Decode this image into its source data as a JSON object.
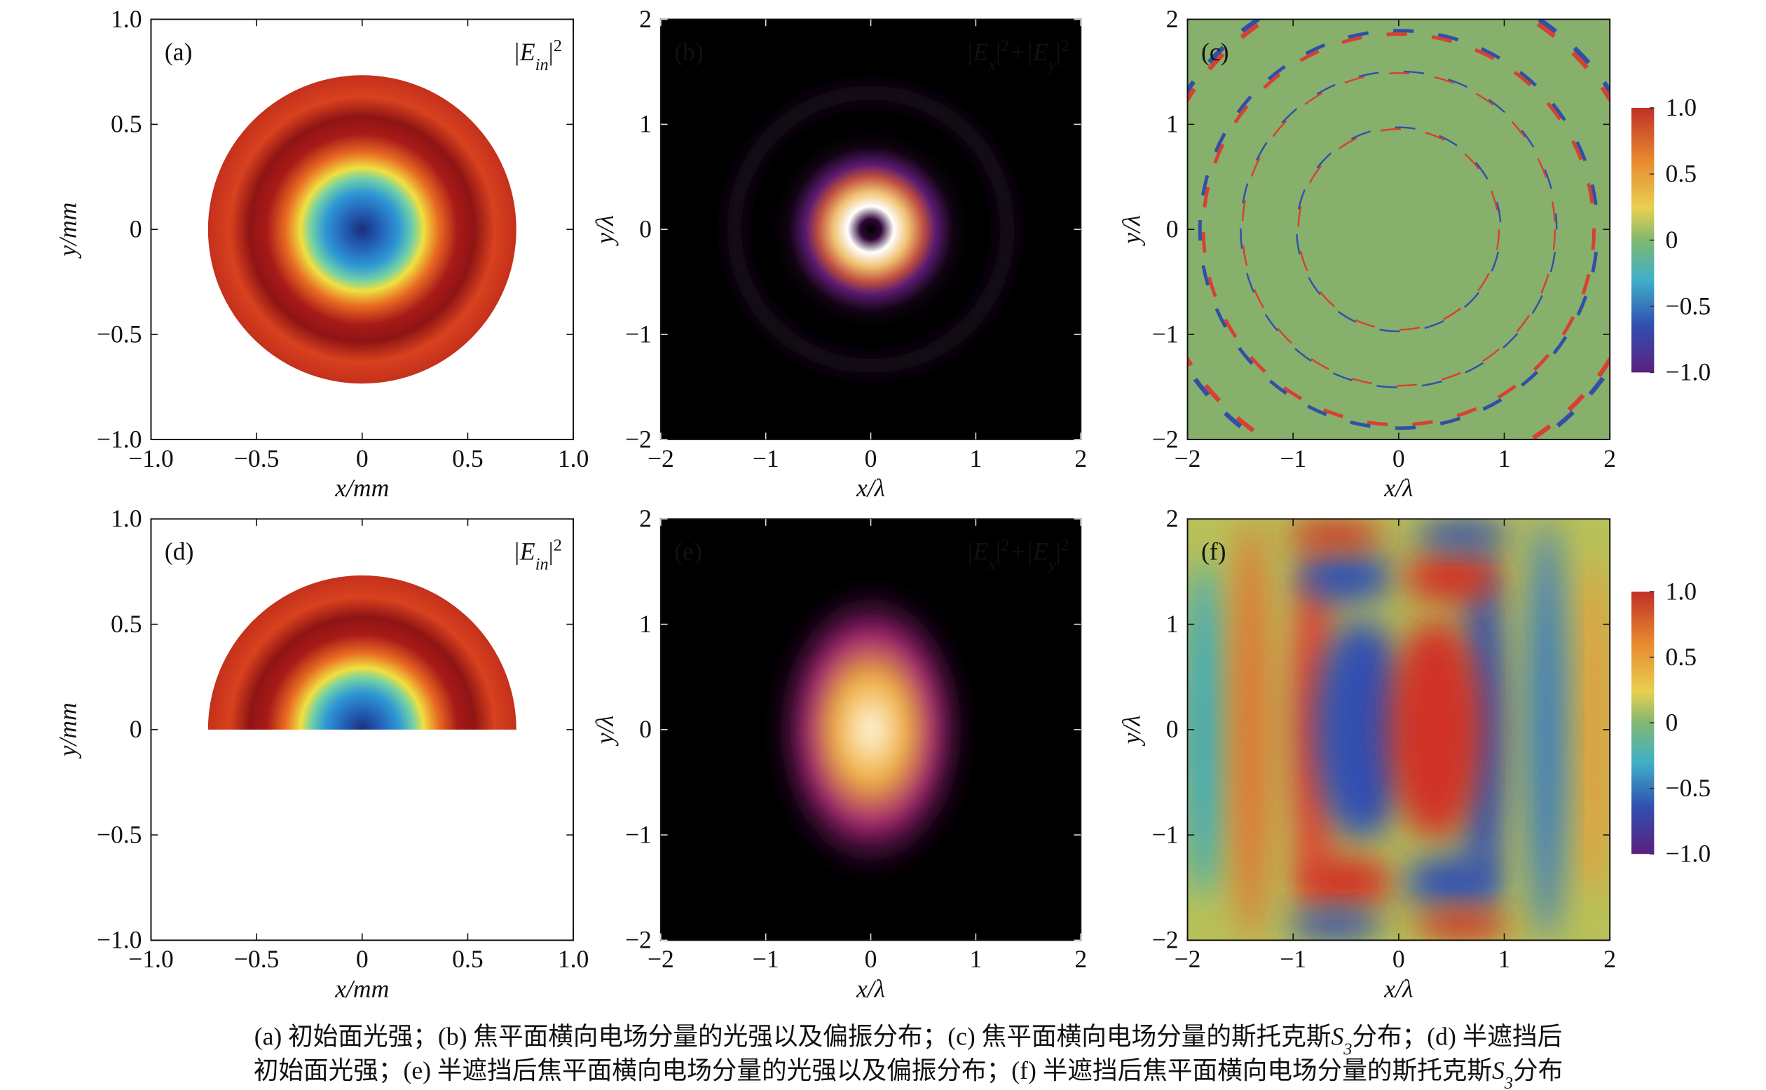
{
  "chart_data": [
    {
      "type": "heatmap",
      "label": "(a)",
      "annotation": [
        {
          "text": "|E"
        },
        {
          "text": "in",
          "style": "sub"
        },
        {
          "text": "|"
        },
        {
          "text": "2",
          "style": "sup"
        }
      ],
      "xlabel": "x/mm",
      "ylabel": "y/mm",
      "xlim": [
        -1,
        1
      ],
      "ylim": [
        -1,
        1
      ],
      "xticks": [
        {
          "value": -1,
          "label": "−1.0"
        },
        {
          "value": -0.5,
          "label": "−0.5"
        },
        0,
        0.5,
        {
          "value": 1,
          "label": "1.0"
        }
      ],
      "yticks": [
        {
          "value": -1,
          "label": "−1.0"
        },
        {
          "value": -0.5,
          "label": "−0.5"
        },
        0,
        0.5,
        {
          "value": 1,
          "label": "1.0"
        }
      ]
    },
    {
      "type": "heatmap",
      "label": "(b)",
      "annotation": [
        {
          "text": "|E"
        },
        {
          "text": "x",
          "style": "sub"
        },
        {
          "text": "|"
        },
        {
          "text": "2",
          "style": "sup"
        },
        {
          "text": "+|E"
        },
        {
          "text": "y",
          "style": "sub"
        },
        {
          "text": "|"
        },
        {
          "text": "2",
          "style": "sup"
        }
      ],
      "xlabel": "x/λ",
      "ylabel": "y/λ",
      "xlim": [
        -2,
        2
      ],
      "ylim": [
        -2,
        2
      ],
      "xticks": [
        {
          "value": -2,
          "label": "−2"
        },
        {
          "value": -1,
          "label": "−1"
        },
        0,
        1,
        2
      ],
      "yticks": [
        {
          "value": -2,
          "label": "−2"
        },
        {
          "value": -1,
          "label": "−1"
        },
        0,
        1,
        2
      ]
    },
    {
      "type": "heatmap",
      "label": "(c)",
      "xlabel": "x/λ",
      "ylabel": "y/λ",
      "xlim": [
        -2,
        2
      ],
      "ylim": [
        -2,
        2
      ],
      "xticks": [
        {
          "value": -2,
          "label": "−2"
        },
        {
          "value": -1,
          "label": "−1"
        },
        0,
        1,
        2
      ],
      "yticks": [
        {
          "value": -2,
          "label": "−2"
        },
        {
          "value": -1,
          "label": "−1"
        },
        0,
        1,
        2
      ],
      "colorbar": {
        "lim": [
          -1,
          1
        ],
        "ticks": [
          {
            "value": 1,
            "label": "1.0"
          },
          0.5,
          0,
          {
            "value": -0.5,
            "label": "−0.5"
          },
          {
            "value": -1,
            "label": "−1.0"
          }
        ]
      }
    },
    {
      "type": "heatmap",
      "label": "(d)",
      "annotation": [
        {
          "text": "|E"
        },
        {
          "text": "in",
          "style": "sub"
        },
        {
          "text": "|"
        },
        {
          "text": "2",
          "style": "sup"
        }
      ],
      "xlabel": "x/mm",
      "ylabel": "y/mm",
      "xlim": [
        -1,
        1
      ],
      "ylim": [
        -1,
        1
      ],
      "xticks": [
        {
          "value": -1,
          "label": "−1.0"
        },
        {
          "value": -0.5,
          "label": "−0.5"
        },
        0,
        0.5,
        {
          "value": 1,
          "label": "1.0"
        }
      ],
      "yticks": [
        {
          "value": -1,
          "label": "−1.0"
        },
        {
          "value": -0.5,
          "label": "−0.5"
        },
        0,
        0.5,
        {
          "value": 1,
          "label": "1.0"
        }
      ]
    },
    {
      "type": "heatmap",
      "label": "(e)",
      "annotation": [
        {
          "text": "|E"
        },
        {
          "text": "x",
          "style": "sub"
        },
        {
          "text": "|"
        },
        {
          "text": "2",
          "style": "sup"
        },
        {
          "text": "+|E"
        },
        {
          "text": "y",
          "style": "sub"
        },
        {
          "text": "|"
        },
        {
          "text": "2",
          "style": "sup"
        }
      ],
      "xlabel": "x/λ",
      "ylabel": "y/λ",
      "xlim": [
        -2,
        2
      ],
      "ylim": [
        -2,
        2
      ],
      "xticks": [
        {
          "value": -2,
          "label": "−2"
        },
        {
          "value": -1,
          "label": "−1"
        },
        0,
        1,
        2
      ],
      "yticks": [
        {
          "value": -2,
          "label": "−2"
        },
        {
          "value": -1,
          "label": "−1"
        },
        0,
        1,
        2
      ]
    },
    {
      "type": "heatmap",
      "label": "(f)",
      "xlabel": "x/λ",
      "ylabel": "y/λ",
      "xlim": [
        -2,
        2
      ],
      "ylim": [
        -2,
        2
      ],
      "xticks": [
        {
          "value": -2,
          "label": "−2"
        },
        {
          "value": -1,
          "label": "−1"
        },
        0,
        1,
        2
      ],
      "yticks": [
        {
          "value": -2,
          "label": "−2"
        },
        {
          "value": -1,
          "label": "−1"
        },
        0,
        1,
        2
      ],
      "colorbar": {
        "lim": [
          -1,
          1
        ],
        "ticks": [
          {
            "value": 1,
            "label": "1.0"
          },
          0.5,
          0,
          {
            "value": -0.5,
            "label": "−0.5"
          },
          {
            "value": -1,
            "label": "−1.0"
          }
        ]
      }
    }
  ],
  "caption": [
    [
      {
        "text": "(a) 初始面光强；(b) 焦平面横向电场分量的光强以及偏振分布；(c) 焦平面横向电场分量的斯托克斯"
      },
      {
        "text": "S",
        "style": "italic"
      },
      {
        "text": "3",
        "style": "sub"
      },
      {
        "text": "分布；(d) 半遮挡后"
      }
    ],
    [
      {
        "text": "初始面光强；(e) 半遮挡后焦平面横向电场分量的光强以及偏振分布；(f) 半遮挡后焦平面横向电场分量的斯托克斯"
      },
      {
        "text": "S",
        "style": "italic"
      },
      {
        "text": "3",
        "style": "sub"
      },
      {
        "text": "分布"
      }
    ]
  ]
}
